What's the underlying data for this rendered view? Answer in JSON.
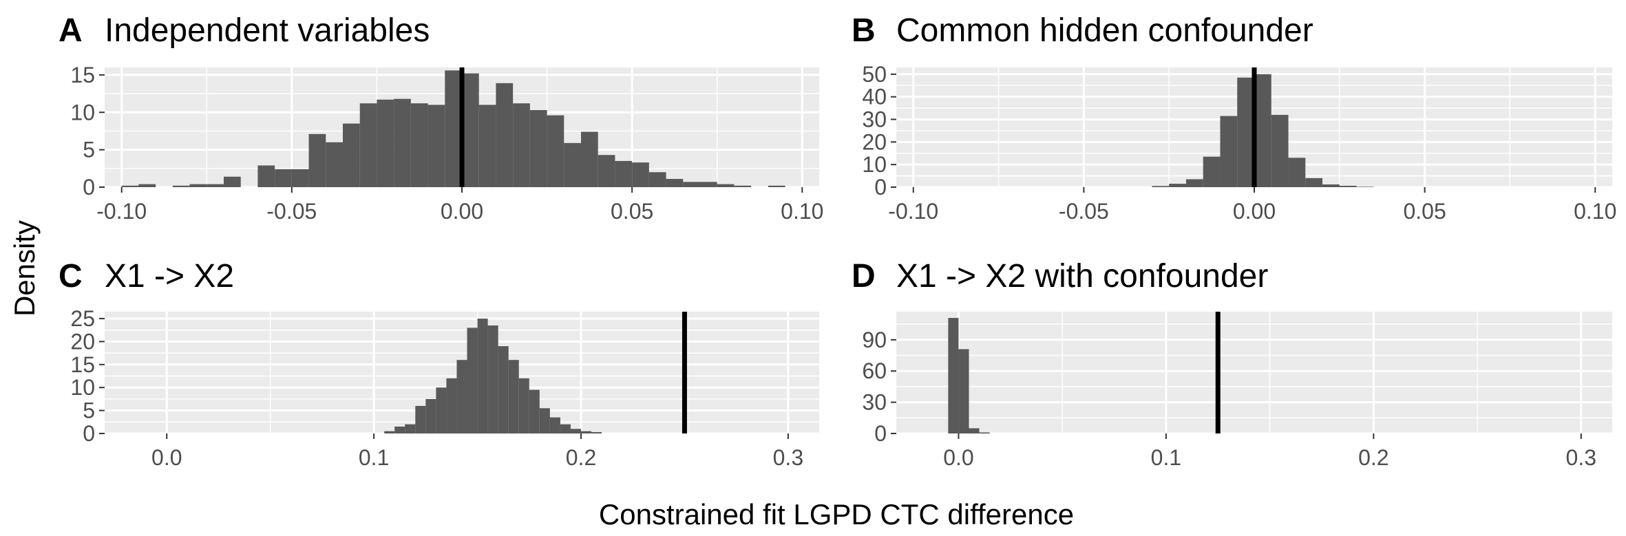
{
  "ylabel": "Density",
  "xlabel": "Constrained fit LGPD CTC difference",
  "colors": {
    "panel_bg": "#ebebeb",
    "grid": "#ffffff",
    "bar": "#595959",
    "ref_line": "#000000",
    "tick_text": "#4d4d4d"
  },
  "chart_data": [
    {
      "type": "bar",
      "letter": "A",
      "title": "Independent variables",
      "xlim": [
        -0.105,
        0.105
      ],
      "ylim": [
        0,
        16
      ],
      "xticks": [
        -0.1,
        -0.05,
        0.0,
        0.05,
        0.1
      ],
      "xtick_labels": [
        "-0.10",
        "-0.05",
        "0.00",
        "0.05",
        "0.10"
      ],
      "yticks": [
        0,
        5,
        10,
        15
      ],
      "ytick_labels": [
        "0",
        "5",
        "10",
        "15"
      ],
      "vline": 0,
      "bin_width": 0.005,
      "bins_start": -0.1,
      "values": [
        0.2,
        0.4,
        0,
        0.2,
        0.4,
        0.4,
        1.4,
        0,
        2.9,
        2.4,
        2.4,
        7.1,
        6.0,
        8.5,
        11.2,
        11.7,
        11.8,
        11.2,
        11.0,
        15.6,
        15.2,
        11.0,
        13.9,
        11.2,
        10.3,
        9.6,
        5.9,
        7.4,
        4.3,
        3.5,
        3.3,
        2.0,
        1.1,
        0.7,
        0.7,
        0.4,
        0.2,
        0,
        0.2,
        0
      ]
    },
    {
      "type": "bar",
      "letter": "B",
      "title": "Common hidden confounder",
      "xlim": [
        -0.105,
        0.105
      ],
      "ylim": [
        0,
        53
      ],
      "xticks": [
        -0.1,
        -0.05,
        0.0,
        0.05,
        0.1
      ],
      "xtick_labels": [
        "-0.10",
        "-0.05",
        "0.00",
        "0.05",
        "0.10"
      ],
      "yticks": [
        0,
        10,
        20,
        30,
        40,
        50
      ],
      "ytick_labels": [
        "0",
        "10",
        "20",
        "30",
        "40",
        "50"
      ],
      "vline": 0,
      "bin_width": 0.005,
      "bins_start": -0.03,
      "values": [
        0.5,
        1.5,
        3.5,
        13.5,
        31.5,
        48.5,
        50,
        32,
        13,
        4,
        1.2,
        0.6,
        0.2
      ]
    },
    {
      "type": "bar",
      "letter": "C",
      "title": "X1 -> X2",
      "xlim": [
        -0.03,
        0.315
      ],
      "ylim": [
        0,
        26.5
      ],
      "xticks": [
        0.0,
        0.1,
        0.2,
        0.3
      ],
      "xtick_labels": [
        "0.0",
        "0.1",
        "0.2",
        "0.3"
      ],
      "yticks": [
        0,
        5,
        10,
        15,
        20,
        25
      ],
      "ytick_labels": [
        "0",
        "5",
        "10",
        "15",
        "20",
        "25"
      ],
      "vline": 0.25,
      "bin_width": 0.005,
      "bins_start": 0.105,
      "values": [
        0.5,
        1.5,
        2.0,
        6.0,
        7.5,
        10.0,
        12.0,
        16.0,
        23.0,
        25.0,
        23.5,
        19.0,
        16.0,
        12.0,
        9.5,
        5.5,
        3.5,
        2.0,
        1.0,
        0.5,
        0.3
      ]
    },
    {
      "type": "bar",
      "letter": "D",
      "title": "X1 -> X2 with confounder",
      "xlim": [
        -0.03,
        0.315
      ],
      "ylim": [
        0,
        117
      ],
      "xticks": [
        0.0,
        0.1,
        0.2,
        0.3
      ],
      "xtick_labels": [
        "0.0",
        "0.1",
        "0.2",
        "0.3"
      ],
      "yticks": [
        0,
        30,
        60,
        90
      ],
      "ytick_labels": [
        "0",
        "30",
        "60",
        "90"
      ],
      "vline": 0.125,
      "bin_width": 0.005,
      "bins_start": -0.005,
      "values": [
        111,
        81,
        5,
        1
      ]
    }
  ]
}
